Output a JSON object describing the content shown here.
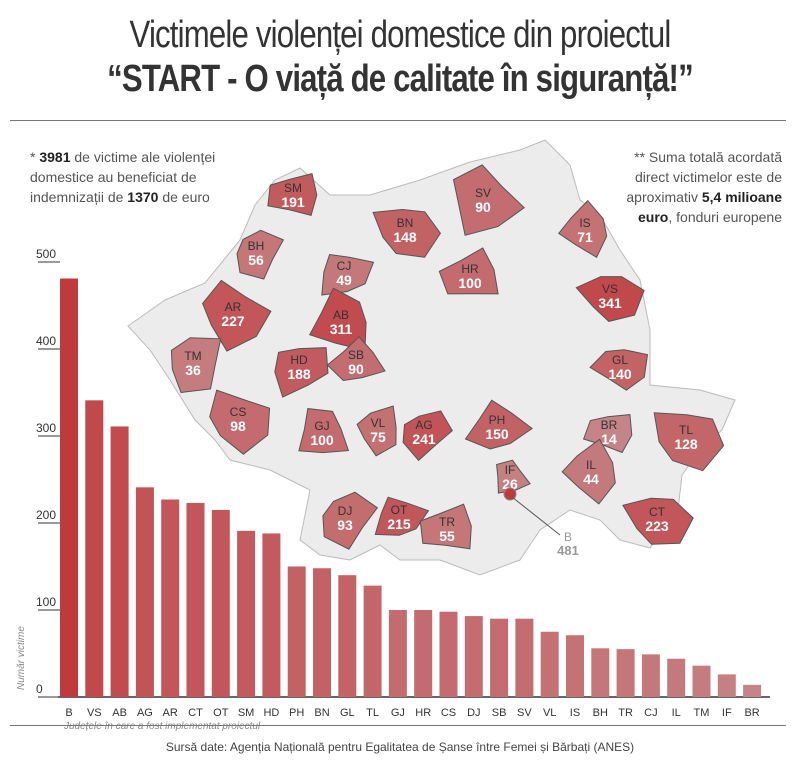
{
  "title_line1": "Victimele violenței domestice din proiectul",
  "title_line2": "“START - O viață de calitate în siguranță!”",
  "note_left": {
    "prefix": "* ",
    "count": "3981",
    "text1": " de victime ale violenței",
    "text2": "domestice au beneficiat de",
    "text3": "indemnizații de ",
    "amount": "1370",
    "text4": " de euro"
  },
  "note_right": {
    "line1": "** Suma totală acordată",
    "line2": "direct victimelor este de",
    "line3a": "aproximativ ",
    "line3b": "5,4 milioane",
    "line4a": "euro",
    "line4b": ", fonduri europene"
  },
  "source": "Sursă date: Agenția Națională pentru Egalitatea de Șanse între Femei și Bărbați (ANES)",
  "colors": {
    "high": "#c0393d",
    "low": "#c69597",
    "map_base": "#ececec",
    "text": "#333333"
  },
  "chart_data": {
    "type": "bar",
    "xlabel": "Județele în care a fost implementat proiectul",
    "ylabel": "Număr victime",
    "ylim": [
      0,
      500
    ],
    "yticks": [
      0,
      100,
      200,
      300,
      400,
      500
    ],
    "categories": [
      "B",
      "VS",
      "AB",
      "AG",
      "AR",
      "CT",
      "OT",
      "SM",
      "HD",
      "PH",
      "BN",
      "GL",
      "TL",
      "GJ",
      "HR",
      "CS",
      "DJ",
      "SB",
      "SV",
      "VL",
      "IS",
      "BH",
      "TR",
      "CJ",
      "IL",
      "TM",
      "IF",
      "BR"
    ],
    "values": [
      481,
      341,
      311,
      241,
      227,
      223,
      215,
      191,
      188,
      150,
      148,
      140,
      128,
      100,
      100,
      98,
      93,
      90,
      90,
      75,
      71,
      56,
      55,
      49,
      44,
      36,
      26,
      14
    ]
  },
  "map": {
    "counties": [
      {
        "code": "SM",
        "value": 191
      },
      {
        "code": "BN",
        "value": 148
      },
      {
        "code": "SV",
        "value": 90
      },
      {
        "code": "IS",
        "value": 71
      },
      {
        "code": "BH",
        "value": 56
      },
      {
        "code": "CJ",
        "value": 49
      },
      {
        "code": "HR",
        "value": 100
      },
      {
        "code": "VS",
        "value": 341
      },
      {
        "code": "AR",
        "value": 227
      },
      {
        "code": "AB",
        "value": 311
      },
      {
        "code": "TM",
        "value": 36
      },
      {
        "code": "HD",
        "value": 188
      },
      {
        "code": "SB",
        "value": 90
      },
      {
        "code": "GL",
        "value": 140
      },
      {
        "code": "CS",
        "value": 98
      },
      {
        "code": "GJ",
        "value": 100
      },
      {
        "code": "VL",
        "value": 75
      },
      {
        "code": "AG",
        "value": 241
      },
      {
        "code": "PH",
        "value": 150
      },
      {
        "code": "BR",
        "value": 14
      },
      {
        "code": "TL",
        "value": 128
      },
      {
        "code": "IF",
        "value": 26
      },
      {
        "code": "IL",
        "value": 44
      },
      {
        "code": "DJ",
        "value": 93
      },
      {
        "code": "OT",
        "value": 215
      },
      {
        "code": "TR",
        "value": 55
      },
      {
        "code": "CT",
        "value": 223
      },
      {
        "code": "B",
        "value": 481
      }
    ]
  }
}
